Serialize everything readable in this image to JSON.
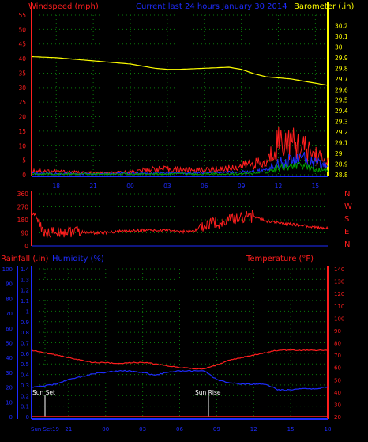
{
  "colors": {
    "background": "#000000",
    "grid": "#0a7a0a",
    "axis_blue": "#1e2cff",
    "axis_red": "#ff1e1e",
    "axis_yellow": "#ffff00",
    "axis_white": "#ffffff",
    "series_green": "#00a000"
  },
  "chart_data": [
    {
      "type": "line",
      "title": "Current last 24 hours January 30 2014",
      "ylabel_left": "Windspeed (mph)",
      "ylabel_right": "Barometer (.in)",
      "x_ticks": [
        "18",
        "21",
        "00",
        "03",
        "06",
        "09",
        "12",
        "15"
      ],
      "ylim_left": [
        0,
        55
      ],
      "ylim_right": [
        28.8,
        30.3
      ],
      "left_ticks": [
        "0",
        "5",
        "10",
        "15",
        "20",
        "25",
        "30",
        "35",
        "40",
        "45",
        "50",
        "55"
      ],
      "right_ticks": [
        "28.8",
        "28.9",
        "29",
        "29.1",
        "29.2",
        "29.3",
        "29.4",
        "29.5",
        "29.6",
        "29.7",
        "29.8",
        "29.9",
        "30",
        "30.1",
        "30.2"
      ],
      "grid": true,
      "series": [
        {
          "color": "#ffff00",
          "axis": "right",
          "x": [
            0,
            2,
            4,
            6,
            8,
            10,
            11,
            12,
            14,
            16,
            17,
            18,
            19,
            20,
            21,
            22,
            23,
            24
          ],
          "values": [
            29.91,
            29.9,
            29.88,
            29.86,
            29.84,
            29.8,
            29.79,
            29.79,
            29.8,
            29.81,
            29.79,
            29.75,
            29.72,
            29.71,
            29.7,
            29.68,
            29.66,
            29.64
          ]
        },
        {
          "color": "#ff1e1e",
          "axis": "left",
          "x": [
            0,
            2,
            4,
            6,
            8,
            10,
            12,
            14,
            16,
            17,
            18,
            19,
            20,
            21,
            22,
            23,
            24
          ],
          "values": [
            1.5,
            1.2,
            0.8,
            0.6,
            1.0,
            2.0,
            1.8,
            1.6,
            2.2,
            3.0,
            4.0,
            3.5,
            12,
            11,
            9,
            7,
            4
          ]
        },
        {
          "color": "#1e2cff",
          "axis": "left",
          "x": [
            0,
            4,
            8,
            12,
            16,
            18,
            19,
            20,
            21,
            22,
            23,
            24
          ],
          "values": [
            0.4,
            0.3,
            0.5,
            0.6,
            0.8,
            1.2,
            1.5,
            4.0,
            5.0,
            5.5,
            4.0,
            3.0
          ]
        },
        {
          "color": "#00a000",
          "axis": "left",
          "x": [
            0,
            8,
            16,
            18,
            19,
            20,
            21,
            22,
            23,
            24
          ],
          "values": [
            0.2,
            0.2,
            0.3,
            0.4,
            0.8,
            2.5,
            3.0,
            3.0,
            2.0,
            1.5
          ]
        }
      ]
    },
    {
      "type": "line",
      "ylim": [
        0,
        360
      ],
      "left_ticks": [
        "0",
        "90",
        "180",
        "270",
        "360"
      ],
      "right_labels": [
        "N",
        "W",
        "S",
        "E",
        "N"
      ],
      "grid": true,
      "series": [
        {
          "color": "#ff1e1e",
          "x": [
            0,
            0.3,
            0.5,
            0.8,
            1,
            2,
            3,
            4,
            5,
            6,
            7,
            8,
            9,
            10,
            11,
            12,
            13,
            14,
            15,
            16,
            17,
            18,
            19,
            20,
            21,
            22,
            23,
            24
          ],
          "values": [
            220,
            215,
            180,
            120,
            90,
            95,
            100,
            95,
            90,
            92,
            100,
            105,
            110,
            105,
            110,
            100,
            95,
            140,
            160,
            175,
            200,
            205,
            170,
            160,
            150,
            140,
            130,
            125
          ]
        }
      ]
    },
    {
      "type": "line",
      "ylabel_left_1": "Rainfall (.in)",
      "ylabel_left_2": "Humidity (%)",
      "ylabel_right": "Temperature (°F)",
      "x_ticks": [
        "Sun Set19",
        "21",
        "00",
        "03",
        "06",
        "09",
        "12",
        "15",
        "18"
      ],
      "ylim_rain": [
        0,
        1.4
      ],
      "ylim_humidity": [
        0,
        100
      ],
      "ylim_temp": [
        20,
        140
      ],
      "rain_ticks": [
        "0",
        "0.1",
        "0.2",
        "0.3",
        "0.4",
        "0.5",
        "0.6",
        "0.7",
        "0.8",
        "0.9",
        "1",
        "1.1",
        "1.2",
        "1.3",
        "1.4"
      ],
      "humidity_ticks": [
        "0",
        "10",
        "20",
        "30",
        "40",
        "50",
        "60",
        "70",
        "80",
        "90",
        "100"
      ],
      "temp_ticks": [
        "20",
        "30",
        "40",
        "50",
        "60",
        "70",
        "80",
        "90",
        "100",
        "110",
        "120",
        "130",
        "140"
      ],
      "annotations": [
        "Sun Set",
        "Sun Rise"
      ],
      "grid": true,
      "series": [
        {
          "color": "#ff1e1e",
          "axis": "temp",
          "x": [
            0,
            1,
            2,
            3,
            4,
            5,
            6,
            7,
            8,
            9,
            10,
            11,
            12,
            13,
            14,
            15,
            16,
            17,
            18,
            19,
            20,
            21,
            22,
            23,
            24
          ],
          "values": [
            74,
            72,
            70,
            68,
            66,
            64,
            64,
            63,
            64,
            64,
            63,
            61,
            60,
            59,
            59,
            62,
            66,
            68,
            70,
            72,
            74,
            74,
            74,
            74,
            74
          ]
        },
        {
          "color": "#1e2cff",
          "axis": "humidity",
          "x": [
            0,
            1,
            2,
            3,
            4,
            5,
            6,
            7,
            8,
            9,
            10,
            11,
            12,
            13,
            14,
            15,
            16,
            17,
            18,
            19,
            20,
            21,
            22,
            23,
            24
          ],
          "values": [
            20,
            21,
            22,
            25,
            27,
            29,
            30,
            31,
            31,
            30,
            28,
            30,
            31,
            31,
            31,
            25,
            23,
            22,
            22,
            22,
            18,
            18,
            19,
            19,
            20
          ]
        },
        {
          "color": "#ff1e1e",
          "axis": "rain",
          "x": [
            0,
            24
          ],
          "values": [
            0,
            0
          ]
        }
      ]
    }
  ]
}
